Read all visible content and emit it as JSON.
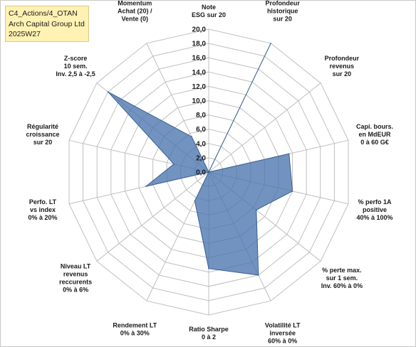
{
  "header": {
    "line1": "C4_Actions/4_OTAN",
    "line2": "Arch Capital Group Ltd",
    "line3": "2025W27"
  },
  "colors": {
    "fill": "#4a74ad",
    "stroke": "#3a5f94",
    "grid": "#bfbfbf",
    "title_bg": "#fff2b3"
  },
  "chart_data": {
    "type": "radar",
    "scale": {
      "min": 0,
      "max": 20,
      "step": 2
    },
    "ticks": [
      "0,0",
      "2,0",
      "4,0",
      "6,0",
      "8,0",
      "10,0",
      "12,0",
      "14,0",
      "16,0",
      "18,0",
      "20,0"
    ],
    "axes": [
      {
        "label": [
          "Note",
          "ESG sur 20"
        ],
        "value": 0
      },
      {
        "label": [
          "Profondeur",
          "historique",
          "sur 20"
        ],
        "value": 20
      },
      {
        "label": [
          "Profondeur",
          "revenus",
          "sur 20"
        ],
        "value": 0
      },
      {
        "label": [
          "Capi. bours.",
          "en MdEUR",
          "0 à 60 G€"
        ],
        "value": 11.5
      },
      {
        "label": [
          "% perfo 1A",
          "positive",
          "40% à 100%"
        ],
        "value": 12
      },
      {
        "label": [
          "% perte max.",
          "sur 1 sem.",
          "Inv. 60% à 0%"
        ],
        "value": 8.5
      },
      {
        "label": [
          "Volatilité LT",
          "inversée",
          "60% à 0%"
        ],
        "value": 16
      },
      {
        "label": [
          "Ratio Sharpe",
          "0 à 2"
        ],
        "value": 13.5
      },
      {
        "label": [
          "Rendement LT",
          "0% à 30%"
        ],
        "value": 4.5
      },
      {
        "label": [
          "Niveau LT",
          "revenus",
          "reccurents",
          "0% à 6%"
        ],
        "value": 0
      },
      {
        "label": [
          "Perfo. LT",
          "vs index",
          "0% à 20%"
        ],
        "value": 9
      },
      {
        "label": [
          "Régularité",
          "croissance",
          "sur 20"
        ],
        "value": 5
      },
      {
        "label": [
          "Z-score",
          "10 sem.",
          "Inv. 2,5 à -2,5"
        ],
        "value": 18
      },
      {
        "label": [
          "Momentum",
          "Achat (20) /",
          "Vente (0)"
        ],
        "value": 5.5
      }
    ]
  }
}
